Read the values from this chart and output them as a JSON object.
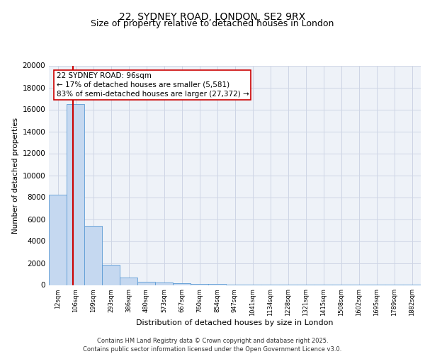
{
  "title1": "22, SYDNEY ROAD, LONDON, SE2 9RX",
  "title2": "Size of property relative to detached houses in London",
  "xlabel": "Distribution of detached houses by size in London",
  "ylabel": "Number of detached properties",
  "categories": [
    "12sqm",
    "106sqm",
    "199sqm",
    "293sqm",
    "386sqm",
    "480sqm",
    "573sqm",
    "667sqm",
    "760sqm",
    "854sqm",
    "947sqm",
    "1041sqm",
    "1134sqm",
    "1228sqm",
    "1321sqm",
    "1415sqm",
    "1508sqm",
    "1602sqm",
    "1695sqm",
    "1789sqm",
    "1882sqm"
  ],
  "values": [
    8200,
    16500,
    5400,
    1850,
    700,
    300,
    200,
    150,
    110,
    100,
    50,
    30,
    20,
    15,
    10,
    8,
    5,
    4,
    3,
    2,
    1
  ],
  "bar_color": "#c5d8f0",
  "bar_edge_color": "#5b9bd5",
  "bg_color": "#eef2f8",
  "grid_color": "#cdd5e5",
  "vline_x": 0.85,
  "vline_color": "#cc0000",
  "annotation_text": "22 SYDNEY ROAD: 96sqm\n← 17% of detached houses are smaller (5,581)\n83% of semi-detached houses are larger (27,372) →",
  "annotation_box_color": "#cc0000",
  "ylim": [
    0,
    20000
  ],
  "yticks": [
    0,
    2000,
    4000,
    6000,
    8000,
    10000,
    12000,
    14000,
    16000,
    18000,
    20000
  ],
  "footer": "Contains HM Land Registry data © Crown copyright and database right 2025.\nContains public sector information licensed under the Open Government Licence v3.0.",
  "title1_fontsize": 10,
  "title2_fontsize": 9,
  "annot_fontsize": 7.5,
  "xlabel_fontsize": 8,
  "ylabel_fontsize": 7.5,
  "ytick_fontsize": 7.5,
  "xtick_fontsize": 6
}
